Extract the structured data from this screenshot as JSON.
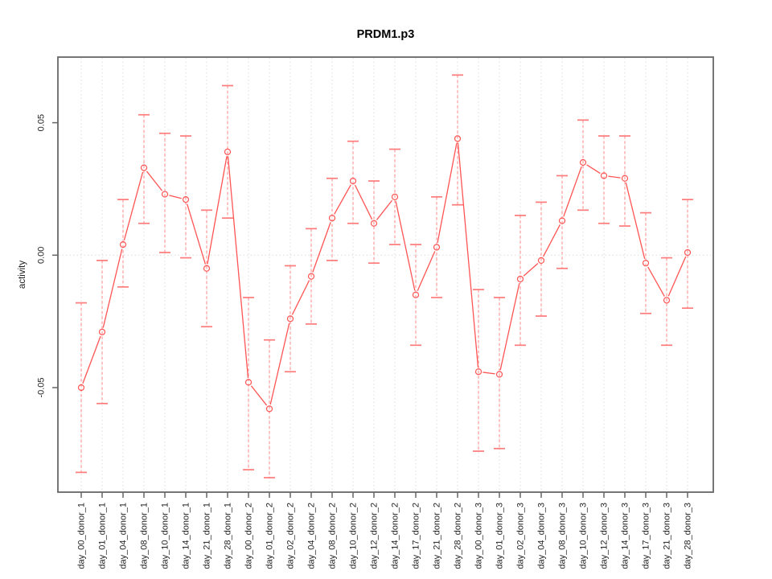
{
  "figure": {
    "title": "PRDM1.p3",
    "ylabel": "activity"
  },
  "colors": {
    "line": "#ff5454",
    "point": "#ff5454",
    "error_stem": "#ff9090",
    "error_cap": "#ff7a7a",
    "grid": "#dcdcdc",
    "axis_box": "#666666",
    "text": "#1f1f1f"
  },
  "chart_data": {
    "type": "line",
    "title": "PRDM1.p3",
    "xlabel": "",
    "ylabel": "activity",
    "legend": "none",
    "grid": "dotted vertical line at every category; dotted horizontal line at y=0",
    "point_style": "open-circle",
    "error_bars": "dashed stems with flat caps",
    "y_ticks": [
      0.05,
      0.0,
      -0.05
    ],
    "y_tick_labels": [
      "0.05",
      "0.00",
      "-0.05"
    ],
    "ylim": [
      -0.089,
      0.075
    ],
    "categories": [
      "day_00_donor_1",
      "day_01_donor_1",
      "day_04_donor_1",
      "day_08_donor_1",
      "day_10_donor_1",
      "day_14_donor_1",
      "day_21_donor_1",
      "day_28_donor_1",
      "day_00_donor_2",
      "day_01_donor_2",
      "day_02_donor_2",
      "day_04_donor_2",
      "day_08_donor_2",
      "day_10_donor_2",
      "day_12_donor_2",
      "day_14_donor_2",
      "day_17_donor_2",
      "day_21_donor_2",
      "day_28_donor_2",
      "day_00_donor_3",
      "day_01_donor_3",
      "day_02_donor_3",
      "day_04_donor_3",
      "day_08_donor_3",
      "day_10_donor_3",
      "day_12_donor_3",
      "day_14_donor_3",
      "day_17_donor_3",
      "day_21_donor_3",
      "day_28_donor_3"
    ],
    "series": [
      {
        "name": "activity",
        "values": [
          -0.05,
          -0.029,
          0.004,
          0.033,
          0.023,
          0.021,
          -0.005,
          0.039,
          -0.048,
          -0.058,
          -0.024,
          -0.008,
          0.014,
          0.028,
          0.012,
          0.022,
          -0.015,
          0.003,
          0.044,
          -0.044,
          -0.045,
          -0.009,
          -0.002,
          0.013,
          0.035,
          0.03,
          0.029,
          -0.003,
          -0.017,
          0.001
        ],
        "error_low": [
          -0.082,
          -0.056,
          -0.012,
          0.012,
          0.001,
          -0.001,
          -0.027,
          0.014,
          -0.081,
          -0.084,
          -0.044,
          -0.026,
          -0.002,
          0.012,
          -0.003,
          0.004,
          -0.034,
          -0.016,
          0.019,
          -0.074,
          -0.073,
          -0.034,
          -0.023,
          -0.005,
          0.017,
          0.012,
          0.011,
          -0.022,
          -0.034,
          -0.02
        ],
        "error_high": [
          -0.018,
          -0.002,
          0.021,
          0.053,
          0.046,
          0.045,
          0.017,
          0.064,
          -0.016,
          -0.032,
          -0.004,
          0.01,
          0.029,
          0.043,
          0.028,
          0.04,
          0.004,
          0.022,
          0.068,
          -0.013,
          -0.016,
          0.015,
          0.02,
          0.03,
          0.051,
          0.045,
          0.045,
          0.016,
          -0.001,
          0.021
        ]
      }
    ]
  }
}
